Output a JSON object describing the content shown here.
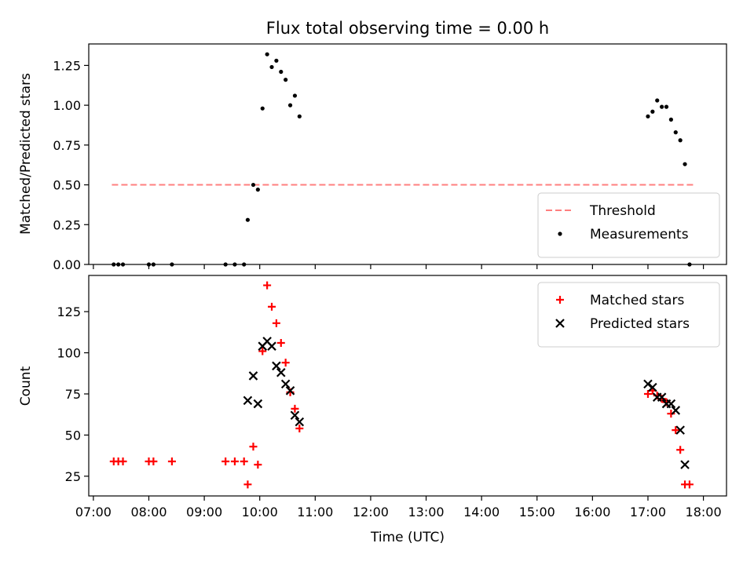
{
  "chart_data": [
    {
      "type": "scatter",
      "title": "Flux total observing time = 0.00 h",
      "xlabel": "",
      "ylabel": "Matched/Predicted stars",
      "ylim": [
        0,
        1.385
      ],
      "xlim": [
        "06:55",
        "18:25"
      ],
      "yticks": [
        "0.00",
        "0.25",
        "0.50",
        "0.75",
        "1.00",
        "1.25"
      ],
      "legend_position": "bottom-right",
      "threshold": {
        "name": "Threshold",
        "value": 0.5,
        "x_start": "07:20",
        "x_end": "17:50",
        "color": "#ff7f7f",
        "style": "dashed"
      },
      "series": [
        {
          "name": "Measurements",
          "color": "#000000",
          "marker": "dot",
          "points": [
            [
              "07:22",
              0.0
            ],
            [
              "07:27",
              0.0
            ],
            [
              "07:32",
              0.0
            ],
            [
              "08:00",
              0.0
            ],
            [
              "08:05",
              0.0
            ],
            [
              "08:25",
              0.0
            ],
            [
              "09:23",
              0.0
            ],
            [
              "09:33",
              0.0
            ],
            [
              "09:43",
              0.0
            ],
            [
              "09:47",
              0.28
            ],
            [
              "09:53",
              0.5
            ],
            [
              "09:58",
              0.47
            ],
            [
              "10:03",
              0.98
            ],
            [
              "10:08",
              1.32
            ],
            [
              "10:13",
              1.24
            ],
            [
              "10:18",
              1.28
            ],
            [
              "10:23",
              1.21
            ],
            [
              "10:28",
              1.16
            ],
            [
              "10:33",
              1.0
            ],
            [
              "10:38",
              1.06
            ],
            [
              "10:43",
              0.93
            ],
            [
              "17:00",
              0.93
            ],
            [
              "17:05",
              0.96
            ],
            [
              "17:10",
              1.03
            ],
            [
              "17:15",
              0.99
            ],
            [
              "17:20",
              0.99
            ],
            [
              "17:25",
              0.91
            ],
            [
              "17:30",
              0.83
            ],
            [
              "17:35",
              0.78
            ],
            [
              "17:40",
              0.63
            ],
            [
              "17:45",
              0.0
            ]
          ]
        }
      ]
    },
    {
      "type": "scatter",
      "title": "",
      "xlabel": "Time (UTC)",
      "ylabel": "Count",
      "ylim": [
        13,
        147
      ],
      "xlim": [
        "06:55",
        "18:25"
      ],
      "yticks": [
        "25",
        "50",
        "75",
        "100",
        "125"
      ],
      "xticks": [
        "07:00",
        "08:00",
        "09:00",
        "10:00",
        "11:00",
        "12:00",
        "13:00",
        "14:00",
        "15:00",
        "16:00",
        "17:00",
        "18:00"
      ],
      "legend_position": "top-right",
      "series": [
        {
          "name": "Matched stars",
          "color": "#ff0000",
          "marker": "plus",
          "points": [
            [
              "07:22",
              34
            ],
            [
              "07:27",
              34
            ],
            [
              "07:32",
              34
            ],
            [
              "08:00",
              34
            ],
            [
              "08:05",
              34
            ],
            [
              "08:25",
              34
            ],
            [
              "09:23",
              34
            ],
            [
              "09:33",
              34
            ],
            [
              "09:43",
              34
            ],
            [
              "09:47",
              20
            ],
            [
              "09:53",
              43
            ],
            [
              "09:58",
              32
            ],
            [
              "10:03",
              101
            ],
            [
              "10:08",
              141
            ],
            [
              "10:13",
              128
            ],
            [
              "10:18",
              118
            ],
            [
              "10:23",
              106
            ],
            [
              "10:28",
              94
            ],
            [
              "10:33",
              76
            ],
            [
              "10:38",
              66
            ],
            [
              "10:43",
              54
            ],
            [
              "17:00",
              75
            ],
            [
              "17:05",
              77
            ],
            [
              "17:10",
              74
            ],
            [
              "17:15",
              72
            ],
            [
              "17:20",
              70
            ],
            [
              "17:25",
              63
            ],
            [
              "17:30",
              53
            ],
            [
              "17:35",
              41
            ],
            [
              "17:40",
              20
            ],
            [
              "17:45",
              20
            ]
          ]
        },
        {
          "name": "Predicted stars",
          "color": "#000000",
          "marker": "x",
          "points": [
            [
              "09:47",
              71
            ],
            [
              "09:53",
              86
            ],
            [
              "09:58",
              69
            ],
            [
              "10:03",
              104
            ],
            [
              "10:08",
              107
            ],
            [
              "10:13",
              104
            ],
            [
              "10:18",
              92
            ],
            [
              "10:23",
              88
            ],
            [
              "10:28",
              81
            ],
            [
              "10:33",
              77
            ],
            [
              "10:38",
              62
            ],
            [
              "10:43",
              58
            ],
            [
              "17:00",
              81
            ],
            [
              "17:05",
              79
            ],
            [
              "17:10",
              73
            ],
            [
              "17:15",
              73
            ],
            [
              "17:20",
              69
            ],
            [
              "17:25",
              69
            ],
            [
              "17:30",
              65
            ],
            [
              "17:35",
              53
            ],
            [
              "17:40",
              32
            ]
          ]
        }
      ]
    }
  ]
}
